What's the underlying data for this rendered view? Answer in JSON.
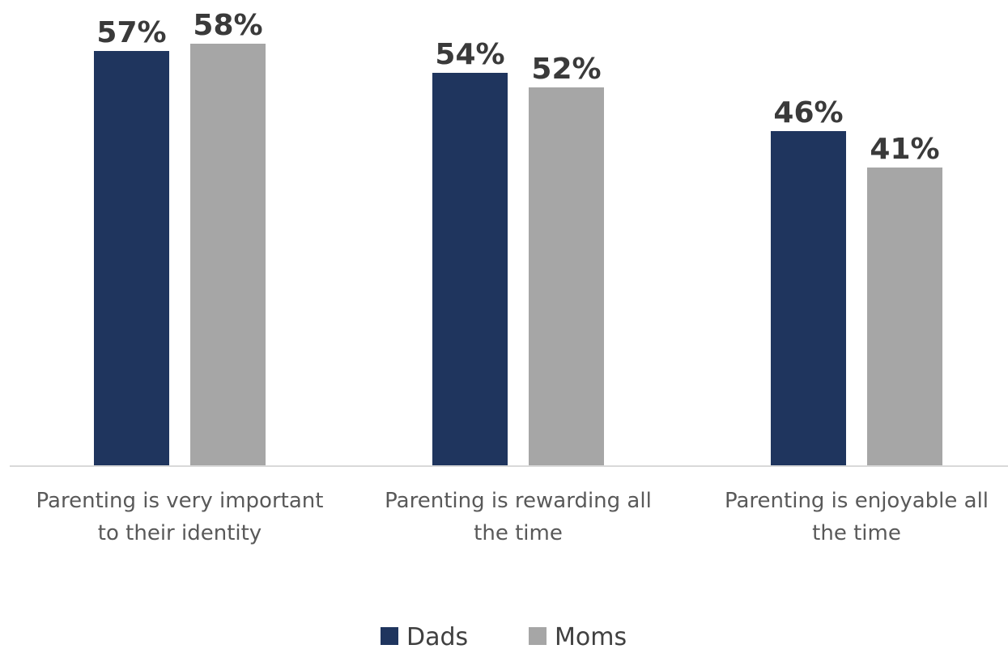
{
  "colors": {
    "dads": "#1f355e",
    "moms": "#a6a6a6",
    "axis": "#d9d9d9"
  },
  "chart_data": {
    "type": "bar",
    "categories": [
      [
        "Parenting is very important",
        "to their identity"
      ],
      [
        "Parenting is rewarding all",
        "the time"
      ],
      [
        "Parenting is enjoyable all",
        "the time"
      ]
    ],
    "series": [
      {
        "name": "Dads",
        "values": [
          57,
          54,
          46
        ],
        "labels": [
          "57%",
          "54%",
          "46%"
        ]
      },
      {
        "name": "Moms",
        "values": [
          58,
          52,
          41
        ],
        "labels": [
          "58%",
          "52%",
          "41%"
        ]
      }
    ],
    "ylim": [
      0,
      58
    ],
    "grid": false,
    "legend": "bottom-center"
  }
}
